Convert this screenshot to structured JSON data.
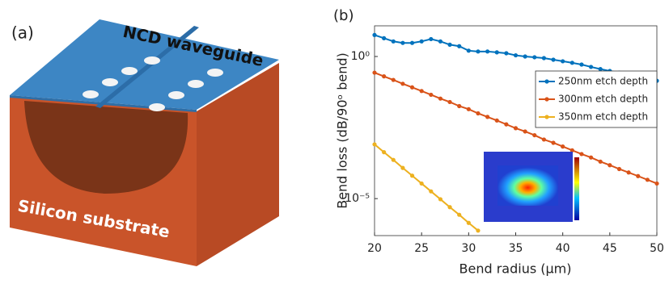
{
  "panel_a": {
    "label": "(a)",
    "waveguide_label": "NCD waveguide",
    "substrate_label": "Silicon substrate"
  },
  "chart_data": {
    "type": "line",
    "panel_label": "(b)",
    "x_label": "Bend radius (μm)",
    "y_label": "Bend loss (dB/90ᵒ bend)",
    "log_y": true,
    "grid": false,
    "legend": "upper right",
    "xlim": [
      20,
      50
    ],
    "xticks": [
      20,
      25,
      30,
      35,
      40,
      45,
      50
    ],
    "ylim": [
      5e-07,
      12
    ],
    "yticks": [
      {
        "value": 1,
        "label": "10⁰"
      },
      {
        "value": 1e-05,
        "label": "10⁻⁵"
      }
    ],
    "x": [
      20,
      21,
      22,
      23,
      24,
      25,
      26,
      27,
      28,
      29,
      30,
      31,
      32,
      33,
      34,
      35,
      36,
      37,
      38,
      39,
      40,
      41,
      42,
      43,
      44,
      45,
      46,
      47,
      48,
      49,
      50
    ],
    "series": [
      {
        "name": "250nm etch depth",
        "color": "#0072bd",
        "values": [
          5.7,
          4.4,
          3.4,
          3.0,
          3.0,
          3.4,
          4.1,
          3.4,
          2.6,
          2.3,
          1.6,
          1.5,
          1.5,
          1.4,
          1.3,
          1.1,
          1.0,
          0.94,
          0.88,
          0.77,
          0.68,
          0.6,
          0.52,
          0.43,
          0.36,
          0.31,
          0.27,
          0.24,
          0.21,
          0.17,
          0.14
        ]
      },
      {
        "name": "300nm etch depth",
        "color": "#d95319",
        "values": [
          0.27,
          0.2,
          0.15,
          0.11,
          0.082,
          0.061,
          0.045,
          0.033,
          0.025,
          0.018,
          0.014,
          0.01,
          0.0075,
          0.0056,
          0.0041,
          0.003,
          0.0023,
          0.0017,
          0.0012,
          0.00092,
          0.00068,
          0.0005,
          0.00037,
          0.00028,
          0.0002,
          0.00015,
          0.00011,
          8.3e-05,
          6.2e-05,
          4.6e-05,
          3.4e-05
        ]
      },
      {
        "name": "350nm etch depth",
        "color": "#edb120",
        "values": [
          0.00081,
          0.00043,
          0.00023,
          0.00012,
          6.4e-05,
          3.4e-05,
          1.8e-05,
          9.5e-06,
          5e-06,
          2.7e-06,
          1.4e-06,
          7.5e-07,
          null,
          null,
          null,
          null,
          null,
          null,
          null,
          null,
          null,
          null,
          null,
          null,
          null,
          null,
          null,
          null,
          null,
          null,
          null
        ]
      }
    ]
  }
}
